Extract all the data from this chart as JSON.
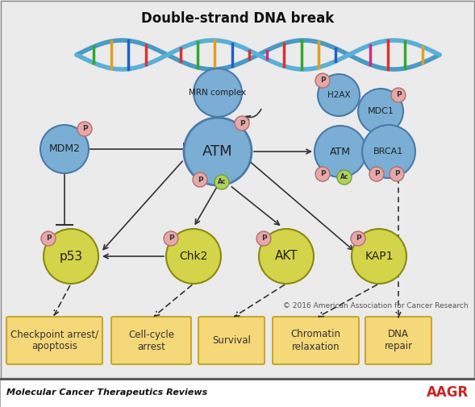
{
  "title": "Double-strand DNA break",
  "bg_color": "#ebebeb",
  "footer_text": "Molecular Cancer Therapeutics Reviews",
  "footer_right": "AAGR",
  "copyright_text": "© 2016 American Association for Cancer Research",
  "blue_c": "#7aaed4",
  "blue_e": "#4a7aaa",
  "yellow_c": "#d4d44a",
  "yellow_e": "#8a8a10",
  "pink_c": "#e8a8a8",
  "pink_e": "#b07070",
  "green_c": "#b0d060",
  "green_e": "#70a030",
  "box_c": "#f5d878",
  "box_e": "#c8a830"
}
